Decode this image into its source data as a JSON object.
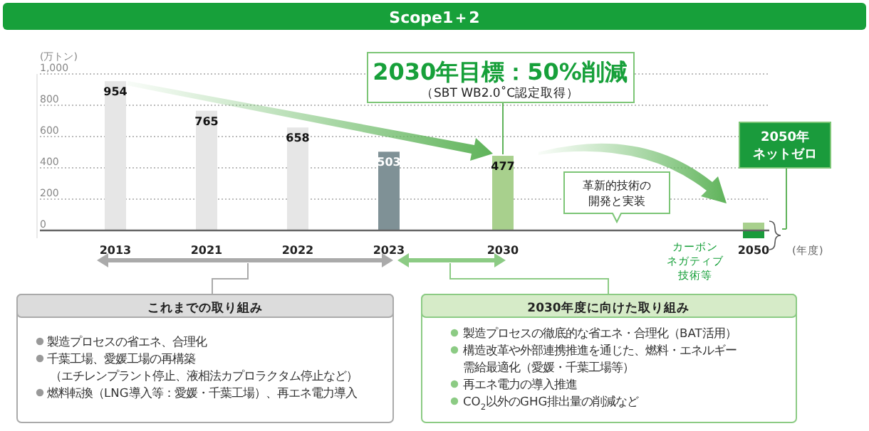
{
  "chart_data": {
    "type": "bar",
    "title": "Scope1＋2",
    "ylabel": "(万トン)",
    "categories": [
      "2013",
      null,
      null,
      null,
      "2021",
      null,
      null,
      null,
      "2022",
      null,
      null,
      null,
      "2023",
      null,
      null,
      null,
      null,
      "2030",
      null,
      null,
      null,
      null,
      null,
      null,
      null,
      null,
      null,
      null,
      "2050"
    ],
    "stacked": true,
    "series": [
      {
        "colors": [
          "#e6e6e6",
          null,
          null,
          null,
          "#e6e6e6",
          null,
          null,
          null,
          "#e6e6e6",
          null,
          null,
          null,
          "#7f9196",
          null,
          null,
          null,
          null,
          "#a8d08d",
          null,
          null,
          null,
          null,
          null,
          null,
          null,
          null,
          null,
          null,
          "#a8d08d"
        ],
        "values": [
          954,
          null,
          null,
          null,
          765,
          null,
          null,
          null,
          658,
          null,
          null,
          null,
          503,
          null,
          null,
          null,
          null,
          477,
          null,
          null,
          null,
          null,
          null,
          null,
          null,
          null,
          null,
          null,
          50
        ],
        "value_labels": [
          "954",
          null,
          null,
          null,
          "765",
          null,
          null,
          null,
          "658",
          null,
          null,
          null,
          "503",
          null,
          null,
          null,
          null,
          "477",
          null,
          null,
          null,
          null,
          null,
          null,
          null,
          null,
          null,
          null,
          null
        ]
      },
      {
        "color": "#1a9b3c",
        "values": [
          null,
          null,
          null,
          null,
          null,
          null,
          null,
          null,
          null,
          null,
          null,
          null,
          null,
          null,
          null,
          null,
          null,
          null,
          null,
          null,
          null,
          null,
          null,
          null,
          null,
          null,
          null,
          null,
          -50
        ]
      }
    ],
    "ylim": [
      -50,
      1000
    ],
    "yticks": [
      0,
      200,
      400,
      600,
      800,
      {
        "value": 1000,
        "label": "1,000"
      }
    ],
    "grid": "y",
    "annotations": [
      {
        "text": "2030年目標：50%削減",
        "x": "2030",
        "y": 477
      },
      "（SBT WB2.0˚C認定取得）",
      "2050年",
      "ネットゼロ",
      "革新的技術の",
      "開発と実装",
      "カーボン",
      "ネガティブ",
      "技術等",
      "これまでの取り組み",
      "製造プロセスの省エネ、合理化",
      "千葉工場、愛媛工場の再構築",
      "（エチレンプラント停止、液相法カプロラクタム停止など）",
      "燃料転換（LNG導入等：愛媛・千葉工場）、再エネ電力導入",
      "2030年度に向けた取り組み",
      "製造プロセスの徹底的な省エネ・合理化（BAT活用）",
      "構造改革や外部連携推進を通じた、燃料・エネルギー",
      "需給最適化（愛媛・千葉工場等）",
      "再エネ電力の導入推進",
      "CO$_{2}$以外のGHG排出量の削減など",
      "(年度)"
    ]
  }
}
